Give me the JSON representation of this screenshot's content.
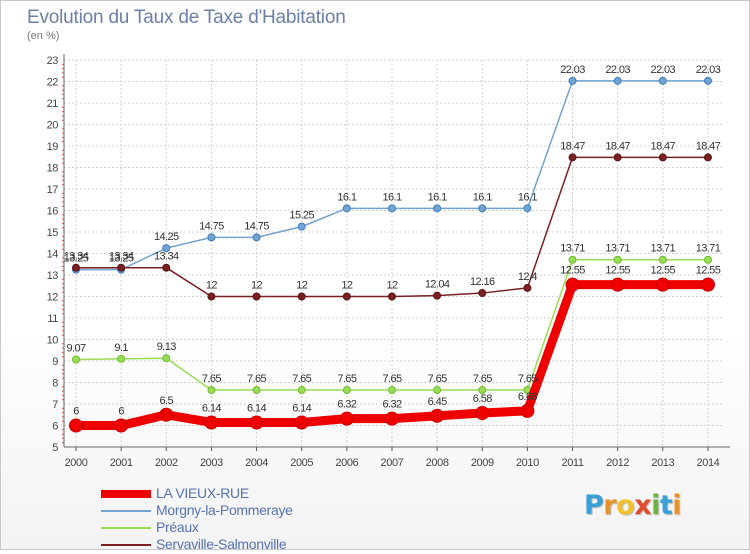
{
  "title": "Evolution du Taux de Taxe d'Habitation",
  "unit": "(en %)",
  "brand": {
    "text": "Proxiti",
    "letters": [
      {
        "ch": "P",
        "color": "#3aa0d8"
      },
      {
        "ch": "r",
        "color": "#e8932a"
      },
      {
        "ch": "o",
        "color": "#f2c12e"
      },
      {
        "ch": "x",
        "color": "#e04a2f"
      },
      {
        "ch": "i",
        "color": "#6cb33f"
      },
      {
        "ch": "t",
        "color": "#3aa0d8"
      },
      {
        "ch": "i",
        "color": "#e8932a"
      }
    ]
  },
  "chart_data": {
    "type": "line",
    "title": "Evolution du Taux de Taxe d'Habitation",
    "ylabel": "(en %)",
    "xlabel": "",
    "x": [
      "2000",
      "2001",
      "2002",
      "2003",
      "2004",
      "2005",
      "2006",
      "2007",
      "2008",
      "2009",
      "2010",
      "2011",
      "2012",
      "2013",
      "2014"
    ],
    "ylim": [
      5,
      23
    ],
    "yticks": [
      "5",
      "6",
      "7",
      "8",
      "9",
      "10",
      "11",
      "12",
      "13",
      "14",
      "15",
      "16",
      "17",
      "18",
      "19",
      "20",
      "21",
      "22",
      "23"
    ],
    "grid": true,
    "legend_position": "bottom-left",
    "series": [
      {
        "name": "LA VIEUX-RUE",
        "color": "#ee0000",
        "values": [
          6,
          6,
          6.5,
          6.14,
          6.14,
          6.14,
          6.32,
          6.32,
          6.45,
          6.58,
          6.68,
          12.55,
          12.55,
          12.55,
          12.55
        ],
        "labels": [
          "6",
          "6",
          "6.5",
          "6.14",
          "6.14",
          "6.14",
          "6.32",
          "6.32",
          "6.45",
          "6.58",
          "6.68",
          "12.55",
          "12.55",
          "12.55",
          "12.55"
        ]
      },
      {
        "name": "Morgny-la-Pommeraye",
        "color": "#72a3d2",
        "values": [
          13.25,
          13.25,
          14.25,
          14.75,
          14.75,
          15.25,
          16.1,
          16.1,
          16.1,
          16.1,
          16.1,
          22.03,
          22.03,
          22.03,
          22.03
        ],
        "labels": [
          "13.25",
          "13.25",
          "14.25",
          "14.75",
          "14.75",
          "15.25",
          "16.1",
          "16.1",
          "16.1",
          "16.1",
          "16.1",
          "22.03",
          "22.03",
          "22.03",
          "22.03"
        ]
      },
      {
        "name": "Préaux",
        "color": "#99dd55",
        "values": [
          9.07,
          9.1,
          9.13,
          7.65,
          7.65,
          7.65,
          7.65,
          7.65,
          7.65,
          7.65,
          7.65,
          13.71,
          13.71,
          13.71,
          13.71
        ],
        "labels": [
          "9.07",
          "9.1",
          "9.13",
          "7.65",
          "7.65",
          "7.65",
          "7.65",
          "7.65",
          "7.65",
          "7.65",
          "7.65",
          "13.71",
          "13.71",
          "13.71",
          "13.71"
        ]
      },
      {
        "name": "Servaville-Salmonville",
        "color": "#7a2020",
        "values": [
          13.34,
          13.34,
          13.34,
          12,
          12,
          12,
          12,
          12,
          12.04,
          12.16,
          12.4,
          18.47,
          18.47,
          18.47,
          18.47
        ],
        "labels": [
          "13.34",
          "13.34",
          "13.34",
          "12",
          "12",
          "12",
          "12",
          "12",
          "12.04",
          "12.16",
          "12.4",
          "18.47",
          "18.47",
          "18.47",
          "18.47"
        ]
      }
    ]
  }
}
